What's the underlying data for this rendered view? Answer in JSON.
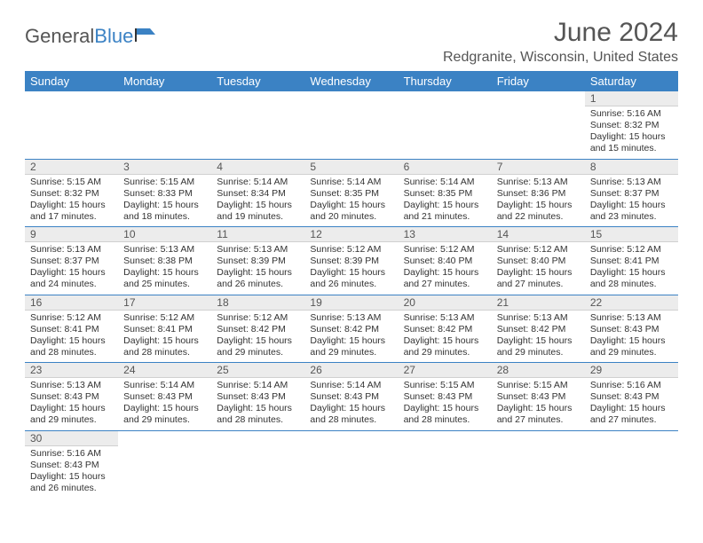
{
  "logo": {
    "text1": "General",
    "text2": "Blue"
  },
  "title": "June 2024",
  "subtitle": "Redgranite, Wisconsin, United States",
  "colors": {
    "header_bg": "#3b82c4",
    "header_text": "#ffffff",
    "daynum_bg": "#ececec",
    "border": "#3b82c4",
    "text": "#333333",
    "title_color": "#555555"
  },
  "typography": {
    "title_fontsize": 30,
    "subtitle_fontsize": 16,
    "dayheader_fontsize": 13,
    "daynum_fontsize": 12,
    "dayinfo_fontsize": 10.5
  },
  "day_headers": [
    "Sunday",
    "Monday",
    "Tuesday",
    "Wednesday",
    "Thursday",
    "Friday",
    "Saturday"
  ],
  "weeks": [
    [
      null,
      null,
      null,
      null,
      null,
      null,
      {
        "n": "1",
        "sunrise": "Sunrise: 5:16 AM",
        "sunset": "Sunset: 8:32 PM",
        "daylight": "Daylight: 15 hours and 15 minutes."
      }
    ],
    [
      {
        "n": "2",
        "sunrise": "Sunrise: 5:15 AM",
        "sunset": "Sunset: 8:32 PM",
        "daylight": "Daylight: 15 hours and 17 minutes."
      },
      {
        "n": "3",
        "sunrise": "Sunrise: 5:15 AM",
        "sunset": "Sunset: 8:33 PM",
        "daylight": "Daylight: 15 hours and 18 minutes."
      },
      {
        "n": "4",
        "sunrise": "Sunrise: 5:14 AM",
        "sunset": "Sunset: 8:34 PM",
        "daylight": "Daylight: 15 hours and 19 minutes."
      },
      {
        "n": "5",
        "sunrise": "Sunrise: 5:14 AM",
        "sunset": "Sunset: 8:35 PM",
        "daylight": "Daylight: 15 hours and 20 minutes."
      },
      {
        "n": "6",
        "sunrise": "Sunrise: 5:14 AM",
        "sunset": "Sunset: 8:35 PM",
        "daylight": "Daylight: 15 hours and 21 minutes."
      },
      {
        "n": "7",
        "sunrise": "Sunrise: 5:13 AM",
        "sunset": "Sunset: 8:36 PM",
        "daylight": "Daylight: 15 hours and 22 minutes."
      },
      {
        "n": "8",
        "sunrise": "Sunrise: 5:13 AM",
        "sunset": "Sunset: 8:37 PM",
        "daylight": "Daylight: 15 hours and 23 minutes."
      }
    ],
    [
      {
        "n": "9",
        "sunrise": "Sunrise: 5:13 AM",
        "sunset": "Sunset: 8:37 PM",
        "daylight": "Daylight: 15 hours and 24 minutes."
      },
      {
        "n": "10",
        "sunrise": "Sunrise: 5:13 AM",
        "sunset": "Sunset: 8:38 PM",
        "daylight": "Daylight: 15 hours and 25 minutes."
      },
      {
        "n": "11",
        "sunrise": "Sunrise: 5:13 AM",
        "sunset": "Sunset: 8:39 PM",
        "daylight": "Daylight: 15 hours and 26 minutes."
      },
      {
        "n": "12",
        "sunrise": "Sunrise: 5:12 AM",
        "sunset": "Sunset: 8:39 PM",
        "daylight": "Daylight: 15 hours and 26 minutes."
      },
      {
        "n": "13",
        "sunrise": "Sunrise: 5:12 AM",
        "sunset": "Sunset: 8:40 PM",
        "daylight": "Daylight: 15 hours and 27 minutes."
      },
      {
        "n": "14",
        "sunrise": "Sunrise: 5:12 AM",
        "sunset": "Sunset: 8:40 PM",
        "daylight": "Daylight: 15 hours and 27 minutes."
      },
      {
        "n": "15",
        "sunrise": "Sunrise: 5:12 AM",
        "sunset": "Sunset: 8:41 PM",
        "daylight": "Daylight: 15 hours and 28 minutes."
      }
    ],
    [
      {
        "n": "16",
        "sunrise": "Sunrise: 5:12 AM",
        "sunset": "Sunset: 8:41 PM",
        "daylight": "Daylight: 15 hours and 28 minutes."
      },
      {
        "n": "17",
        "sunrise": "Sunrise: 5:12 AM",
        "sunset": "Sunset: 8:41 PM",
        "daylight": "Daylight: 15 hours and 28 minutes."
      },
      {
        "n": "18",
        "sunrise": "Sunrise: 5:12 AM",
        "sunset": "Sunset: 8:42 PM",
        "daylight": "Daylight: 15 hours and 29 minutes."
      },
      {
        "n": "19",
        "sunrise": "Sunrise: 5:13 AM",
        "sunset": "Sunset: 8:42 PM",
        "daylight": "Daylight: 15 hours and 29 minutes."
      },
      {
        "n": "20",
        "sunrise": "Sunrise: 5:13 AM",
        "sunset": "Sunset: 8:42 PM",
        "daylight": "Daylight: 15 hours and 29 minutes."
      },
      {
        "n": "21",
        "sunrise": "Sunrise: 5:13 AM",
        "sunset": "Sunset: 8:42 PM",
        "daylight": "Daylight: 15 hours and 29 minutes."
      },
      {
        "n": "22",
        "sunrise": "Sunrise: 5:13 AM",
        "sunset": "Sunset: 8:43 PM",
        "daylight": "Daylight: 15 hours and 29 minutes."
      }
    ],
    [
      {
        "n": "23",
        "sunrise": "Sunrise: 5:13 AM",
        "sunset": "Sunset: 8:43 PM",
        "daylight": "Daylight: 15 hours and 29 minutes."
      },
      {
        "n": "24",
        "sunrise": "Sunrise: 5:14 AM",
        "sunset": "Sunset: 8:43 PM",
        "daylight": "Daylight: 15 hours and 29 minutes."
      },
      {
        "n": "25",
        "sunrise": "Sunrise: 5:14 AM",
        "sunset": "Sunset: 8:43 PM",
        "daylight": "Daylight: 15 hours and 28 minutes."
      },
      {
        "n": "26",
        "sunrise": "Sunrise: 5:14 AM",
        "sunset": "Sunset: 8:43 PM",
        "daylight": "Daylight: 15 hours and 28 minutes."
      },
      {
        "n": "27",
        "sunrise": "Sunrise: 5:15 AM",
        "sunset": "Sunset: 8:43 PM",
        "daylight": "Daylight: 15 hours and 28 minutes."
      },
      {
        "n": "28",
        "sunrise": "Sunrise: 5:15 AM",
        "sunset": "Sunset: 8:43 PM",
        "daylight": "Daylight: 15 hours and 27 minutes."
      },
      {
        "n": "29",
        "sunrise": "Sunrise: 5:16 AM",
        "sunset": "Sunset: 8:43 PM",
        "daylight": "Daylight: 15 hours and 27 minutes."
      }
    ],
    [
      {
        "n": "30",
        "sunrise": "Sunrise: 5:16 AM",
        "sunset": "Sunset: 8:43 PM",
        "daylight": "Daylight: 15 hours and 26 minutes."
      },
      null,
      null,
      null,
      null,
      null,
      null
    ]
  ]
}
